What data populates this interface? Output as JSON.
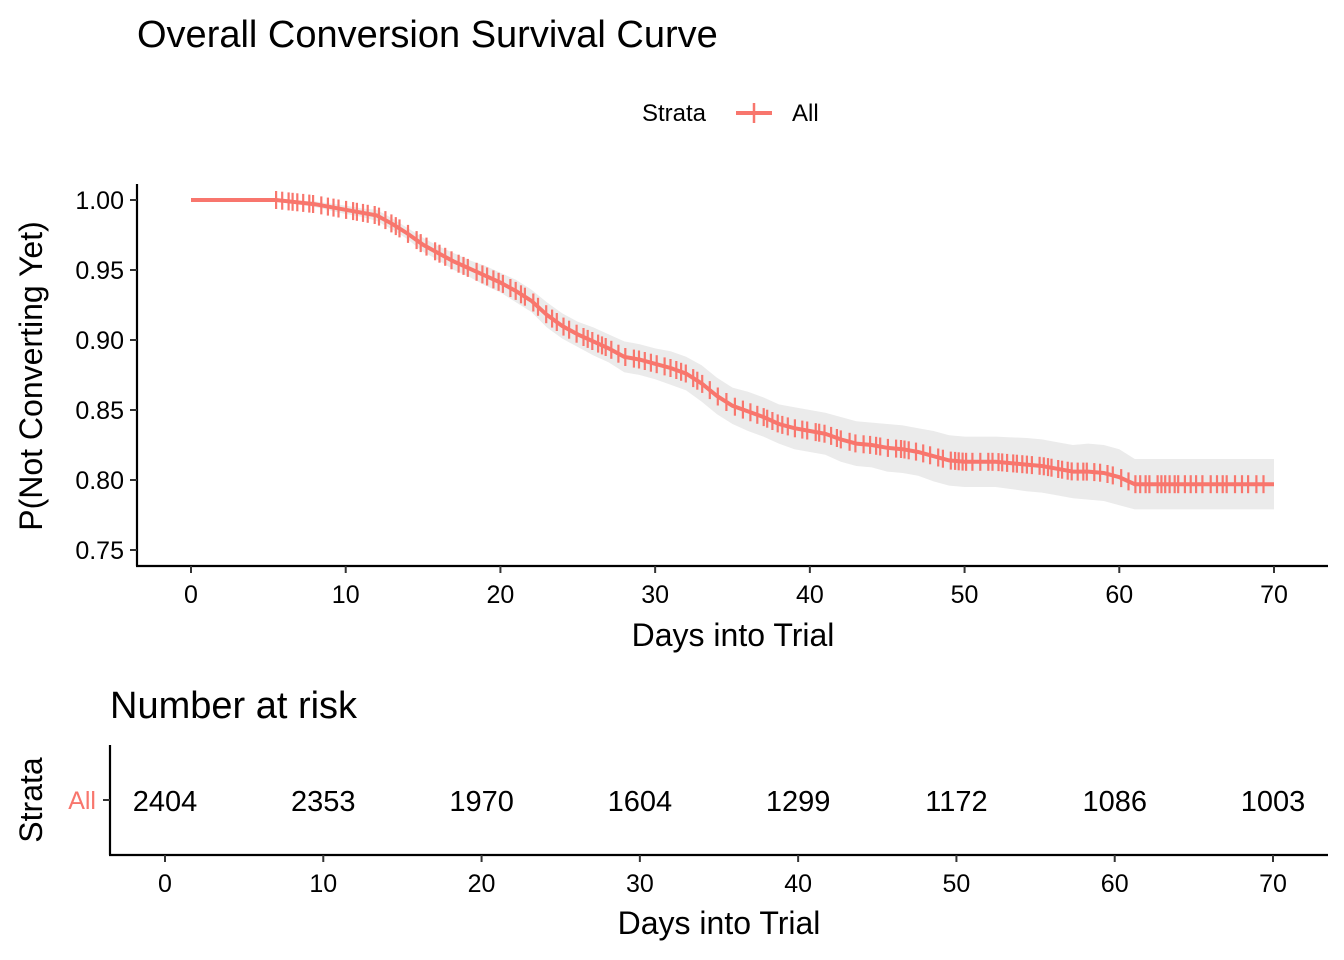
{
  "chart_data": [
    {
      "type": "line",
      "subtype": "kaplan-meier",
      "title": "Overall Conversion Survival Curve",
      "xlabel": "Days into Trial",
      "ylabel": "P(Not Converting Yet)",
      "legend": {
        "title": "Strata",
        "placement": "top-center"
      },
      "xlim": [
        0,
        70
      ],
      "ylim": [
        0.75,
        1.0
      ],
      "xticks": [
        0,
        10,
        20,
        30,
        40,
        50,
        60,
        70
      ],
      "xtick_labels": [
        "0",
        "10",
        "20",
        "30",
        "40",
        "50",
        "60",
        "70"
      ],
      "yticks": [
        0.75,
        0.8,
        0.85,
        0.9,
        0.95,
        1.0
      ],
      "ytick_labels": [
        "0.75",
        "0.80",
        "0.85",
        "0.90",
        "0.95",
        "1.00"
      ],
      "grid": false,
      "colors": {
        "series": "#F8766D",
        "ci_band": "#EBEBEB"
      },
      "series": [
        {
          "name": "All",
          "x": [
            0,
            5.5,
            8,
            10,
            11,
            12,
            13,
            14,
            15,
            16,
            17,
            18,
            19,
            20,
            21,
            22,
            23,
            24,
            25,
            26,
            27,
            28,
            29,
            30,
            31,
            32,
            33,
            34,
            35,
            36,
            37,
            38,
            39,
            40,
            41,
            42,
            43,
            44,
            45,
            46,
            47,
            48,
            49,
            50,
            52,
            54,
            55,
            56,
            57,
            58,
            59,
            60,
            61,
            70
          ],
          "y": [
            1.0,
            1.0,
            0.997,
            0.993,
            0.991,
            0.989,
            0.983,
            0.976,
            0.968,
            0.962,
            0.956,
            0.951,
            0.946,
            0.941,
            0.935,
            0.928,
            0.918,
            0.91,
            0.904,
            0.899,
            0.894,
            0.888,
            0.886,
            0.883,
            0.88,
            0.876,
            0.869,
            0.86,
            0.853,
            0.849,
            0.845,
            0.84,
            0.837,
            0.835,
            0.833,
            0.829,
            0.826,
            0.825,
            0.823,
            0.822,
            0.82,
            0.817,
            0.814,
            0.813,
            0.813,
            0.811,
            0.81,
            0.808,
            0.806,
            0.806,
            0.805,
            0.802,
            0.797,
            0.797
          ],
          "lower": [
            1.0,
            1.0,
            0.995,
            0.99,
            0.988,
            0.985,
            0.979,
            0.972,
            0.963,
            0.957,
            0.95,
            0.945,
            0.939,
            0.934,
            0.927,
            0.92,
            0.909,
            0.901,
            0.895,
            0.889,
            0.884,
            0.877,
            0.875,
            0.872,
            0.868,
            0.864,
            0.856,
            0.847,
            0.84,
            0.835,
            0.831,
            0.826,
            0.822,
            0.82,
            0.818,
            0.813,
            0.81,
            0.809,
            0.806,
            0.805,
            0.803,
            0.799,
            0.796,
            0.795,
            0.795,
            0.792,
            0.791,
            0.789,
            0.787,
            0.786,
            0.785,
            0.782,
            0.779,
            0.779
          ],
          "upper": [
            1.0,
            1.0,
            0.999,
            0.996,
            0.994,
            0.993,
            0.987,
            0.98,
            0.973,
            0.967,
            0.962,
            0.957,
            0.953,
            0.948,
            0.943,
            0.936,
            0.927,
            0.919,
            0.913,
            0.909,
            0.904,
            0.899,
            0.897,
            0.894,
            0.892,
            0.888,
            0.882,
            0.873,
            0.866,
            0.863,
            0.859,
            0.854,
            0.852,
            0.85,
            0.848,
            0.845,
            0.842,
            0.841,
            0.84,
            0.839,
            0.837,
            0.835,
            0.832,
            0.831,
            0.831,
            0.83,
            0.829,
            0.827,
            0.825,
            0.826,
            0.825,
            0.822,
            0.815,
            0.815
          ]
        }
      ]
    },
    {
      "type": "table",
      "title": "Number at risk",
      "xlabel": "Days into Trial",
      "ylabel": "Strata",
      "xlim": [
        0,
        70
      ],
      "xticks": [
        0,
        10,
        20,
        30,
        40,
        50,
        60,
        70
      ],
      "xtick_labels": [
        "0",
        "10",
        "20",
        "30",
        "40",
        "50",
        "60",
        "70"
      ],
      "rows": [
        {
          "name": "All",
          "x": [
            0,
            10,
            20,
            30,
            40,
            50,
            60,
            70
          ],
          "values": [
            "2404",
            "2353",
            "1970",
            "1604",
            "1299",
            "1172",
            "1086",
            "1003"
          ]
        }
      ]
    }
  ]
}
